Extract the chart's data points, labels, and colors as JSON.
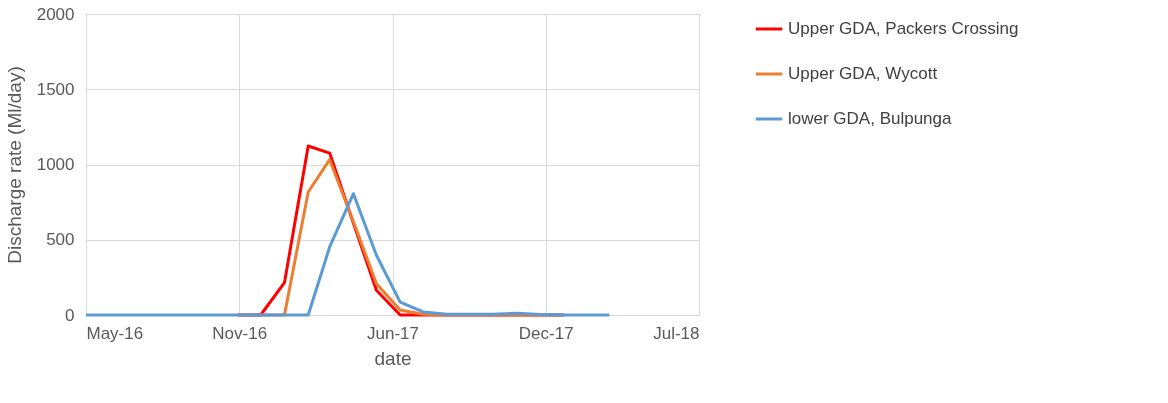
{
  "chart_data": {
    "type": "line",
    "xlabel": "date",
    "ylabel": "Discharge rate (Ml/day)",
    "x": [
      "2016-05-01",
      "2016-06-15",
      "2016-07-15",
      "2016-08-15",
      "2016-09-15",
      "2016-10-15",
      "2016-11-15",
      "2016-12-15",
      "2017-01-15",
      "2017-02-15",
      "2017-03-15",
      "2017-04-15",
      "2017-05-15",
      "2017-06-15",
      "2017-07-15",
      "2017-08-15",
      "2017-09-15",
      "2017-10-15",
      "2017-11-15",
      "2017-12-15",
      "2018-01-15",
      "2018-02-15",
      "2018-03-15"
    ],
    "series": [
      {
        "name": "Upper GDA, Packers Crossing",
        "color": "#ff0000",
        "values": [
          null,
          null,
          null,
          null,
          null,
          null,
          0,
          0,
          215,
          1123,
          1076,
          609,
          164,
          0,
          0,
          0,
          0,
          0,
          0,
          0,
          0,
          null,
          null
        ]
      },
      {
        "name": "Upper GDA, Wycott",
        "color": "#ed7d31",
        "values": [
          null,
          null,
          null,
          null,
          null,
          null,
          0,
          0,
          0,
          817,
          1032,
          620,
          208,
          33,
          5,
          0,
          0,
          0,
          0,
          0,
          0,
          null,
          null
        ]
      },
      {
        "name": "lower GDA, Bulpunga",
        "color": "#5b9bd5",
        "values": [
          0,
          0,
          0,
          0,
          0,
          0,
          0,
          0,
          0,
          0,
          452,
          806,
          397,
          86,
          20,
          5,
          5,
          5,
          12,
          3,
          0,
          0,
          0
        ]
      }
    ],
    "xlim": [
      "2016-05-01",
      "2018-07-10"
    ],
    "xticks": [
      {
        "value": "2016-05-01",
        "label": "May-16"
      },
      {
        "value": "2016-11-17",
        "label": "Nov-16"
      },
      {
        "value": "2017-06-05",
        "label": "Jun-17"
      },
      {
        "value": "2017-12-22",
        "label": "Dec-17"
      },
      {
        "value": "2018-07-10",
        "label": "Jul-18"
      }
    ],
    "ylim": [
      0,
      2000
    ],
    "yticks": [
      0,
      500,
      {
        "value": 1000,
        "label": "1000"
      },
      {
        "value": 1500,
        "label": "1500"
      },
      {
        "value": 2000,
        "label": "2000"
      }
    ],
    "grid": true,
    "legend": "right",
    "marker": "none",
    "line_style": "solid"
  }
}
